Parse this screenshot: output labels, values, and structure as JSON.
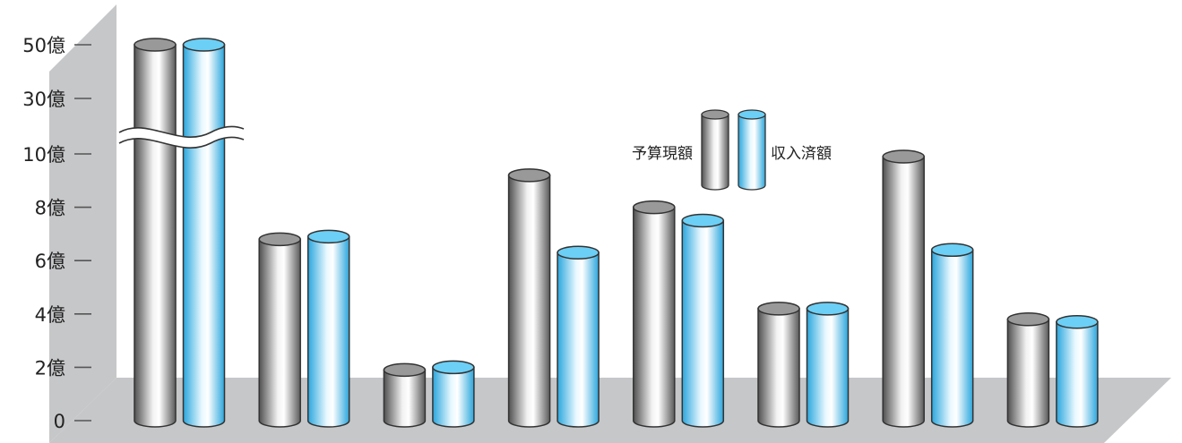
{
  "chart_data": {
    "type": "bar",
    "title": "",
    "xlabel": "",
    "ylabel": "",
    "y_ticks": [
      {
        "value": 0,
        "label": "0"
      },
      {
        "value": 2,
        "label": "2億"
      },
      {
        "value": 4,
        "label": "4億"
      },
      {
        "value": 6,
        "label": "6億"
      },
      {
        "value": 8,
        "label": "8億"
      },
      {
        "value": 10,
        "label": "10億"
      },
      {
        "value": 30,
        "label": "30億"
      },
      {
        "value": 50,
        "label": "50億"
      }
    ],
    "axis_break": "between 10億 and 30億",
    "ylim": [
      0,
      50
    ],
    "unit": "億",
    "categories": [
      "",
      "",
      "",
      "",
      "",
      "",
      "",
      ""
    ],
    "series": [
      {
        "name": "予算現額",
        "color": "#8c8c8c",
        "values": [
          50,
          6.8,
          1.9,
          9.2,
          8.0,
          4.2,
          9.9,
          3.8
        ]
      },
      {
        "name": "収入済額",
        "color": "#4fc3f0",
        "values": [
          50,
          6.9,
          2.0,
          6.3,
          7.5,
          4.2,
          6.4,
          3.7
        ]
      }
    ],
    "legend": {
      "placement": "top-right",
      "style": "cylinder"
    },
    "style": "3d-cylinder"
  }
}
